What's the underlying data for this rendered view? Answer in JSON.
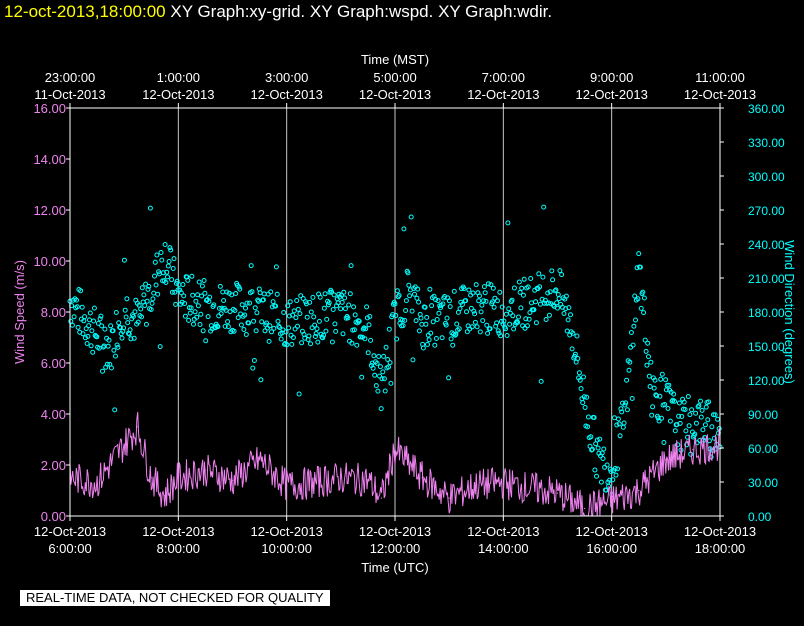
{
  "header": {
    "timestamp": "12-oct-2013,18:00:00",
    "graphs": "XY Graph:xy-grid.  XY Graph:wspd.  XY Graph:wdir."
  },
  "footer": {
    "notice": "REAL-TIME DATA, NOT CHECKED FOR QUALITY"
  },
  "colors": {
    "wind_speed": "#ee82ee",
    "wind_direction": "#00ffff",
    "frame": "#ffffff",
    "background": "#000000"
  },
  "chart_data": {
    "type": "line",
    "top_axis": {
      "label": "Time (MST)",
      "ticks": [
        {
          "time": "23:00:00",
          "date": "11-Oct-2013"
        },
        {
          "time": "1:00:00",
          "date": "12-Oct-2013"
        },
        {
          "time": "3:00:00",
          "date": "12-Oct-2013"
        },
        {
          "time": "5:00:00",
          "date": "12-Oct-2013"
        },
        {
          "time": "7:00:00",
          "date": "12-Oct-2013"
        },
        {
          "time": "9:00:00",
          "date": "12-Oct-2013"
        },
        {
          "time": "11:00:00",
          "date": "12-Oct-2013"
        }
      ]
    },
    "bottom_axis": {
      "label": "Time (UTC)",
      "range": [
        "2013-10-12 06:00",
        "2013-10-12 18:00"
      ],
      "ticks": [
        {
          "date": "12-Oct-2013",
          "time": "6:00:00"
        },
        {
          "date": "12-Oct-2013",
          "time": "8:00:00"
        },
        {
          "date": "12-Oct-2013",
          "time": "10:00:00"
        },
        {
          "date": "12-Oct-2013",
          "time": "12:00:00"
        },
        {
          "date": "12-Oct-2013",
          "time": "14:00:00"
        },
        {
          "date": "12-Oct-2013",
          "time": "16:00:00"
        },
        {
          "date": "12-Oct-2013",
          "time": "18:00:00"
        }
      ]
    },
    "y_left": {
      "label": "Wind Speed (m/s)",
      "range": [
        0,
        16
      ],
      "ticks": [
        "0.00",
        "2.00",
        "4.00",
        "6.00",
        "8.00",
        "10.00",
        "12.00",
        "14.00",
        "16.00"
      ]
    },
    "y_right": {
      "label": "Wind Direction (degrees)",
      "range": [
        0,
        360
      ],
      "ticks": [
        "0.00",
        "30.00",
        "60.00",
        "90.00",
        "120.00",
        "150.00",
        "180.00",
        "210.00",
        "240.00",
        "270.00",
        "300.00",
        "330.00",
        "360.00"
      ]
    },
    "grid": "vertical",
    "series": [
      {
        "key": "wspd",
        "style": "line",
        "axis": "left",
        "unit": "m/s",
        "x": [
          "06:00",
          "06:30",
          "07:00",
          "07:15",
          "07:30",
          "07:45",
          "08:00",
          "08:30",
          "09:00",
          "09:30",
          "10:00",
          "10:30",
          "11:00",
          "11:30",
          "11:45",
          "12:00",
          "12:30",
          "13:00",
          "13:30",
          "14:00",
          "14:30",
          "15:00",
          "15:30",
          "16:00",
          "16:30",
          "17:00",
          "17:30",
          "18:00"
        ],
        "values": [
          1.5,
          1.3,
          2.8,
          3.5,
          1.5,
          0.8,
          1.5,
          1.8,
          1.4,
          2.2,
          1.2,
          1.3,
          1.5,
          1.4,
          0.7,
          2.6,
          1.5,
          0.7,
          1.2,
          1.3,
          1.1,
          0.9,
          0.3,
          0.6,
          1.0,
          2.2,
          2.6,
          2.8
        ]
      },
      {
        "key": "wdir",
        "style": "scatter",
        "axis": "right",
        "unit": "degrees",
        "x": [
          "06:00",
          "06:15",
          "06:30",
          "06:45",
          "07:00",
          "07:15",
          "07:30",
          "07:45",
          "08:00",
          "08:30",
          "09:00",
          "09:30",
          "10:00",
          "10:30",
          "11:00",
          "11:30",
          "11:45",
          "12:00",
          "12:15",
          "12:30",
          "13:00",
          "13:30",
          "14:00",
          "14:30",
          "15:00",
          "15:15",
          "15:30",
          "15:45",
          "16:00",
          "16:15",
          "16:30",
          "16:45",
          "17:00",
          "17:15",
          "17:30",
          "17:45",
          "18:00"
        ],
        "values": [
          190,
          175,
          160,
          150,
          185,
          170,
          200,
          230,
          195,
          185,
          185,
          180,
          170,
          175,
          180,
          165,
          110,
          175,
          200,
          170,
          175,
          185,
          180,
          190,
          200,
          170,
          100,
          50,
          40,
          90,
          220,
          110,
          100,
          80,
          85,
          80,
          80
        ]
      }
    ]
  }
}
